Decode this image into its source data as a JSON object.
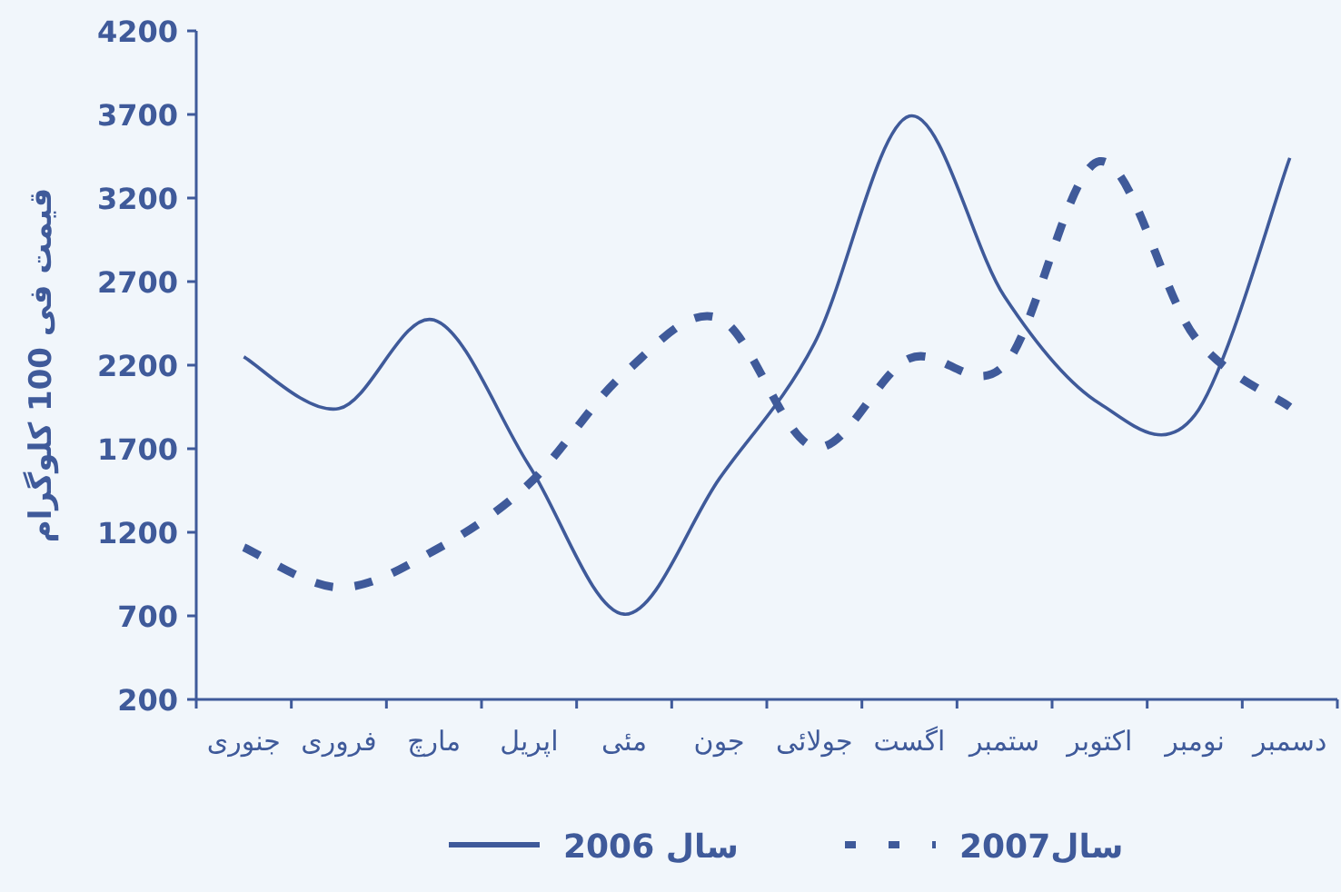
{
  "chart_data": {
    "type": "line",
    "ylabel": "قیمت فی 100 کلوگرام",
    "categories": [
      "جنوری",
      "فروری",
      "مارچ",
      "اپریل",
      "مئی",
      "جون",
      "جولائی",
      "اگست",
      "ستمبر",
      "اکتوبر",
      "نومبر",
      "دسمبر"
    ],
    "series": [
      {
        "name": "سال 2006",
        "color": "#3f5a9a",
        "line_style": "solid",
        "values": [
          2250,
          1940,
          2470,
          1600,
          710,
          1520,
          2330,
          3690,
          2610,
          1970,
          1900,
          3440
        ]
      },
      {
        "name": "سال2007",
        "color": "#3f5a9a",
        "line_style": "dashed",
        "values": [
          1110,
          870,
          1090,
          1490,
          2150,
          2480,
          1710,
          2240,
          2200,
          3420,
          2370,
          1950
        ]
      }
    ],
    "ylim": [
      200,
      4200
    ],
    "yticks": [
      200,
      700,
      1200,
      1700,
      2200,
      2700,
      3200,
      3700,
      4200
    ],
    "grid": false,
    "legend": "bottom",
    "marker": "none"
  }
}
